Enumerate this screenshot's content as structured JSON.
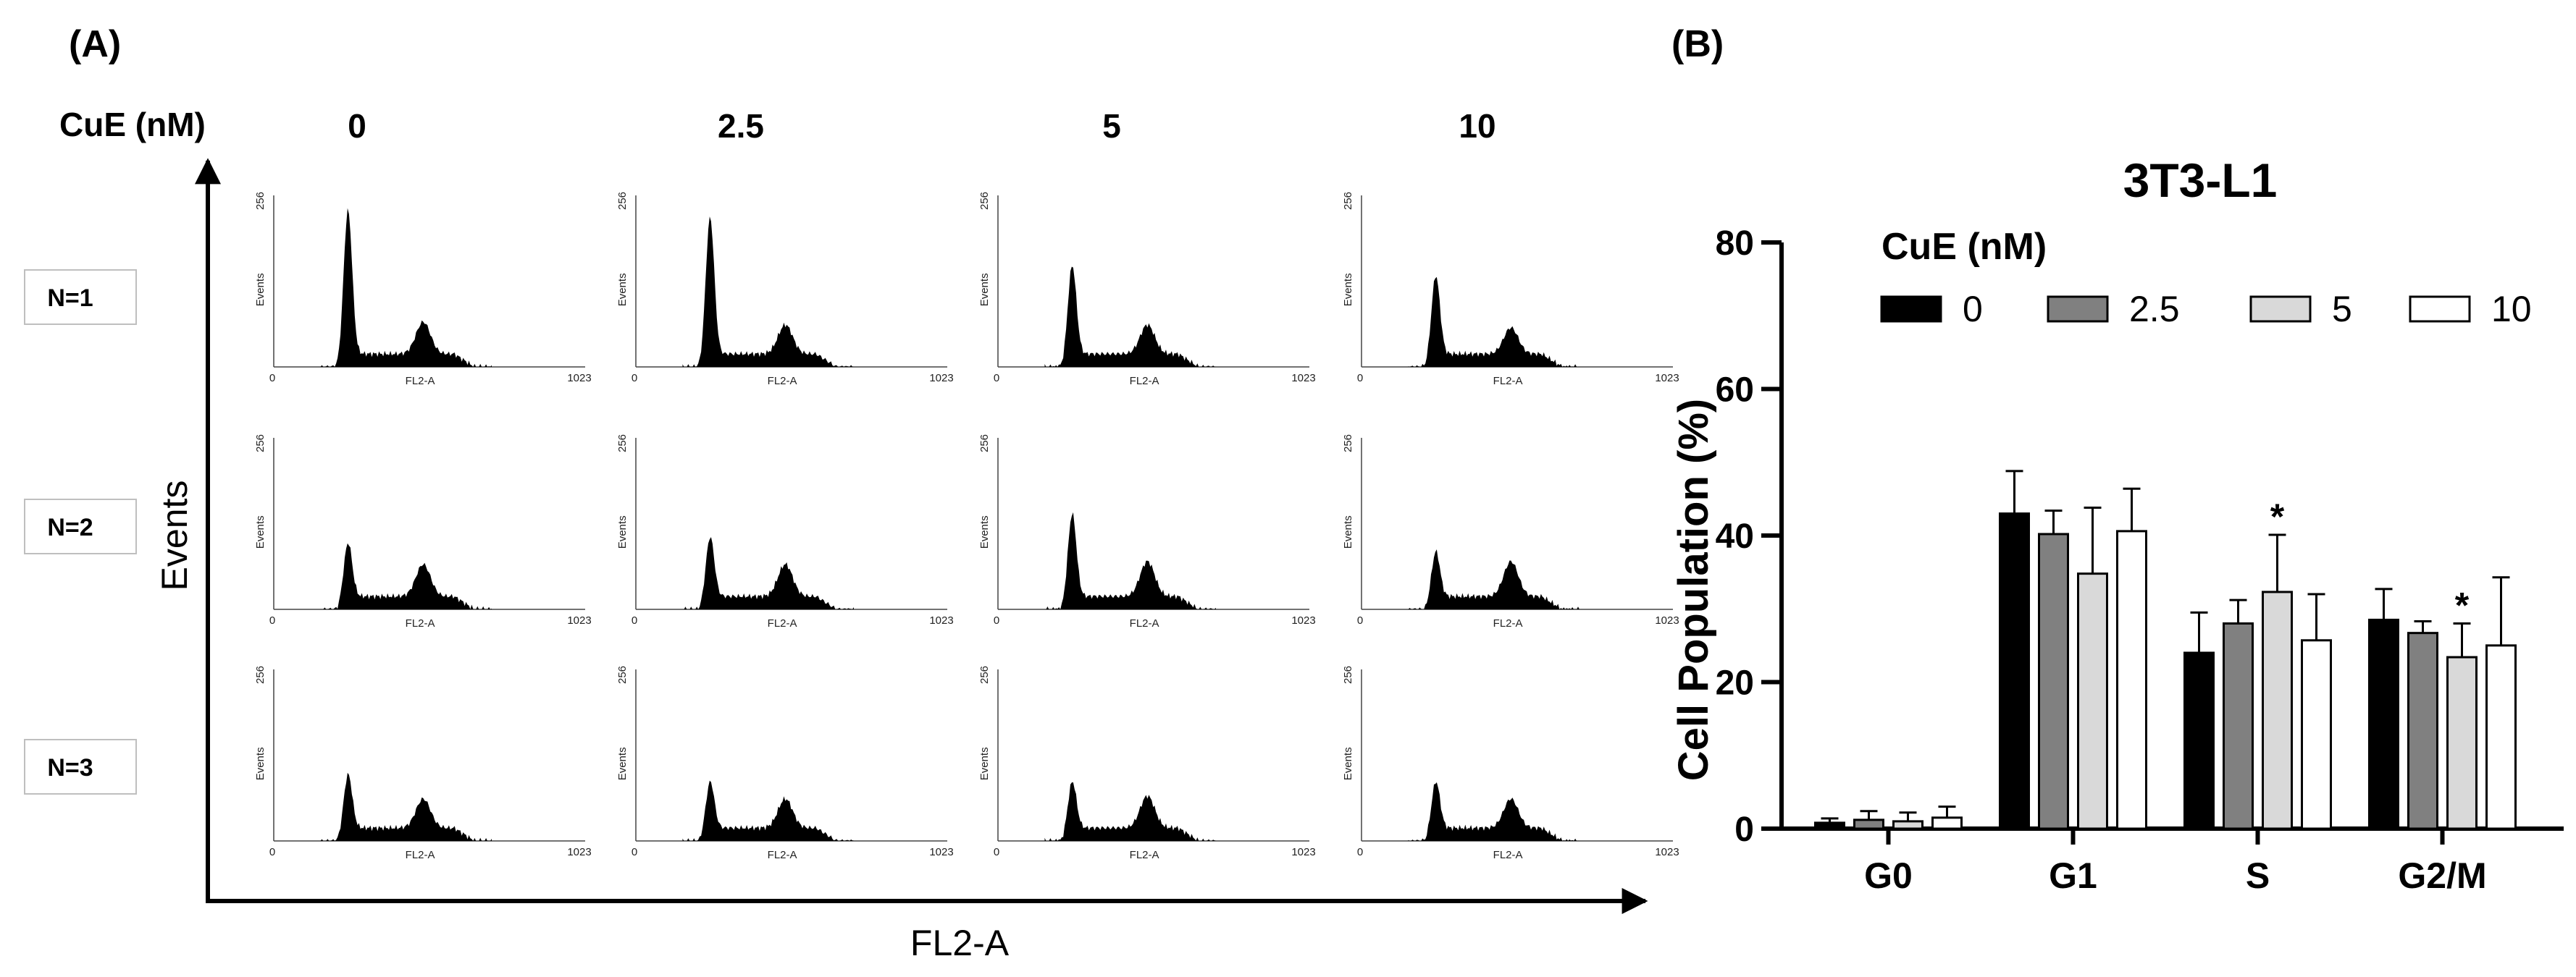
{
  "panel_a": {
    "label": "(A)",
    "row_header": "CuE (nM)",
    "concentrations": [
      "0",
      "2.5",
      "5",
      "10"
    ],
    "replicates": [
      "N=1",
      "N=2",
      "N=3"
    ],
    "y_axis_label": "Events",
    "x_axis_label": "FL2-A",
    "mini_plot": {
      "y_max_label": "256",
      "y_label": "Events",
      "x_min_label": "0",
      "x_max_label": "1023",
      "x_label": "FL2-A"
    }
  },
  "panel_b": {
    "label": "(B)"
  },
  "chart_data": {
    "type": "bar",
    "title": "3T3-L1",
    "xlabel": "",
    "ylabel": "Cell Population (%)",
    "ylim": [
      0,
      80
    ],
    "yticks": [
      "0",
      "20",
      "40",
      "60",
      "80"
    ],
    "categories": [
      "G0",
      "G1",
      "S",
      "G2/M"
    ],
    "legend_title": "CuE (nM)",
    "legend_position": "top-right",
    "series": [
      {
        "name": "0",
        "color": "#000000",
        "values": [
          0.8,
          43.0,
          24.0,
          28.5
        ],
        "errors": [
          0.6,
          5.8,
          5.5,
          4.2
        ],
        "significant": [
          false,
          false,
          false,
          false
        ]
      },
      {
        "name": "2.5",
        "color": "#808080",
        "values": [
          1.2,
          40.2,
          28.0,
          26.7
        ],
        "errors": [
          1.2,
          3.2,
          3.2,
          1.6
        ],
        "significant": [
          false,
          false,
          false,
          false
        ]
      },
      {
        "name": "5",
        "color": "#d9d9d9",
        "values": [
          1.0,
          34.8,
          32.3,
          23.4
        ],
        "errors": [
          1.2,
          9.0,
          7.8,
          4.6
        ],
        "significant": [
          false,
          false,
          true,
          true
        ]
      },
      {
        "name": "10",
        "color": "#ffffff",
        "values": [
          1.5,
          40.6,
          25.7,
          25.0
        ],
        "errors": [
          1.5,
          5.8,
          6.3,
          9.3
        ],
        "significant": [
          false,
          false,
          false,
          false
        ]
      }
    ],
    "significance_marker": "*"
  }
}
